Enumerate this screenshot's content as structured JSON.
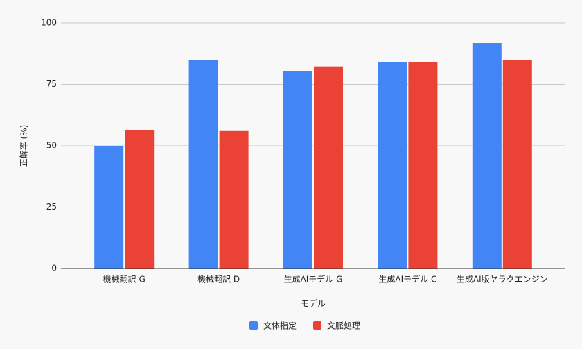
{
  "chart_data": {
    "type": "bar",
    "x_label": "モデル",
    "y_label": "正解率 (%)",
    "categories": [
      "機械翻訳 G",
      "機械翻訳 D",
      "生成AIモデル G",
      "生成AIモデル C",
      "生成AI版ヤラクエンジン"
    ],
    "series": [
      {
        "name": "文体指定",
        "color": "#4285f4",
        "values": [
          50,
          85,
          80.5,
          84,
          91.8
        ]
      },
      {
        "name": "文脈処理",
        "color": "#ea4335",
        "values": [
          56.5,
          56,
          82.3,
          84,
          85
        ]
      }
    ],
    "ylim": [
      0,
      100
    ],
    "yticks": [
      0,
      25,
      50,
      75,
      100
    ],
    "grid": true
  }
}
